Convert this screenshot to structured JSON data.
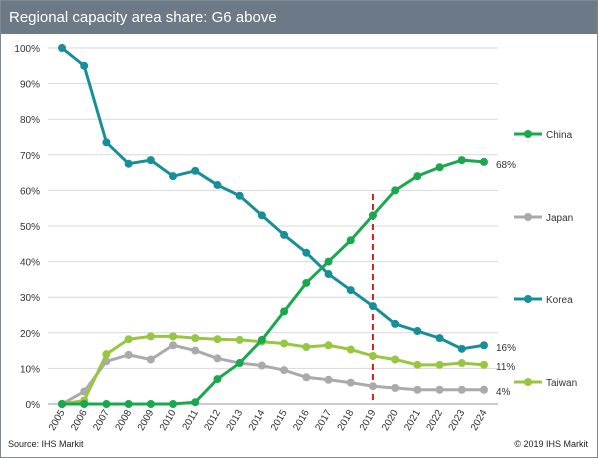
{
  "header": {
    "title": "Regional capacity area share: G6 above"
  },
  "footer": {
    "source": "Source: IHS Markit",
    "copyright": "© 2019 IHS Markit"
  },
  "colors": {
    "china": "#1aa84e",
    "japan": "#aaaaaa",
    "korea": "#178f99",
    "taiwan": "#97c740",
    "divider": "#d42020",
    "grid": "#d9d9d9",
    "titlebar": "#6b7a86"
  },
  "chart_data": {
    "type": "line",
    "title": "Regional capacity area share: G6 above",
    "x": [
      "2005",
      "2006",
      "2007",
      "2008",
      "2009",
      "2010",
      "2011",
      "2012",
      "2013",
      "2014",
      "2015",
      "2016",
      "2017",
      "2018",
      "2019",
      "2020",
      "2021",
      "2022",
      "2023",
      "2024"
    ],
    "yticks": [
      "0%",
      "10%",
      "20%",
      "30%",
      "40%",
      "50%",
      "60%",
      "70%",
      "80%",
      "90%",
      "100%"
    ],
    "ylim": [
      0,
      100
    ],
    "grid": true,
    "legend_position": "right",
    "vertical_marker_at": "2019",
    "series": [
      {
        "name": "China",
        "color": "#1aa84e",
        "end_label": "68%",
        "values": [
          0,
          0,
          0,
          0,
          0,
          0,
          0.5,
          7,
          11.5,
          18,
          26,
          34,
          40,
          46,
          53,
          60,
          64,
          66.5,
          68.5,
          68
        ]
      },
      {
        "name": "Japan",
        "color": "#aaaaaa",
        "end_label": "4%",
        "values": [
          0,
          3.5,
          12,
          13.8,
          12.5,
          16.5,
          15,
          12.8,
          11.5,
          10.8,
          9.5,
          7.5,
          6.8,
          6,
          5,
          4.5,
          4,
          4,
          4,
          4
        ]
      },
      {
        "name": "Korea",
        "color": "#178f99",
        "end_label": "16%",
        "values": [
          100,
          95,
          73.5,
          67.5,
          68.5,
          64,
          65.5,
          61.5,
          58.5,
          53,
          47.5,
          42.5,
          36.5,
          32,
          27.5,
          22.5,
          20.5,
          18.5,
          15.5,
          16.5
        ]
      },
      {
        "name": "Taiwan",
        "color": "#97c740",
        "end_label": "11%",
        "values": [
          0,
          1,
          14,
          18.2,
          19,
          19,
          18.5,
          18.2,
          18,
          17.5,
          17,
          16,
          16.5,
          15.3,
          13.5,
          12.5,
          11,
          11,
          11.5,
          11
        ]
      }
    ]
  }
}
